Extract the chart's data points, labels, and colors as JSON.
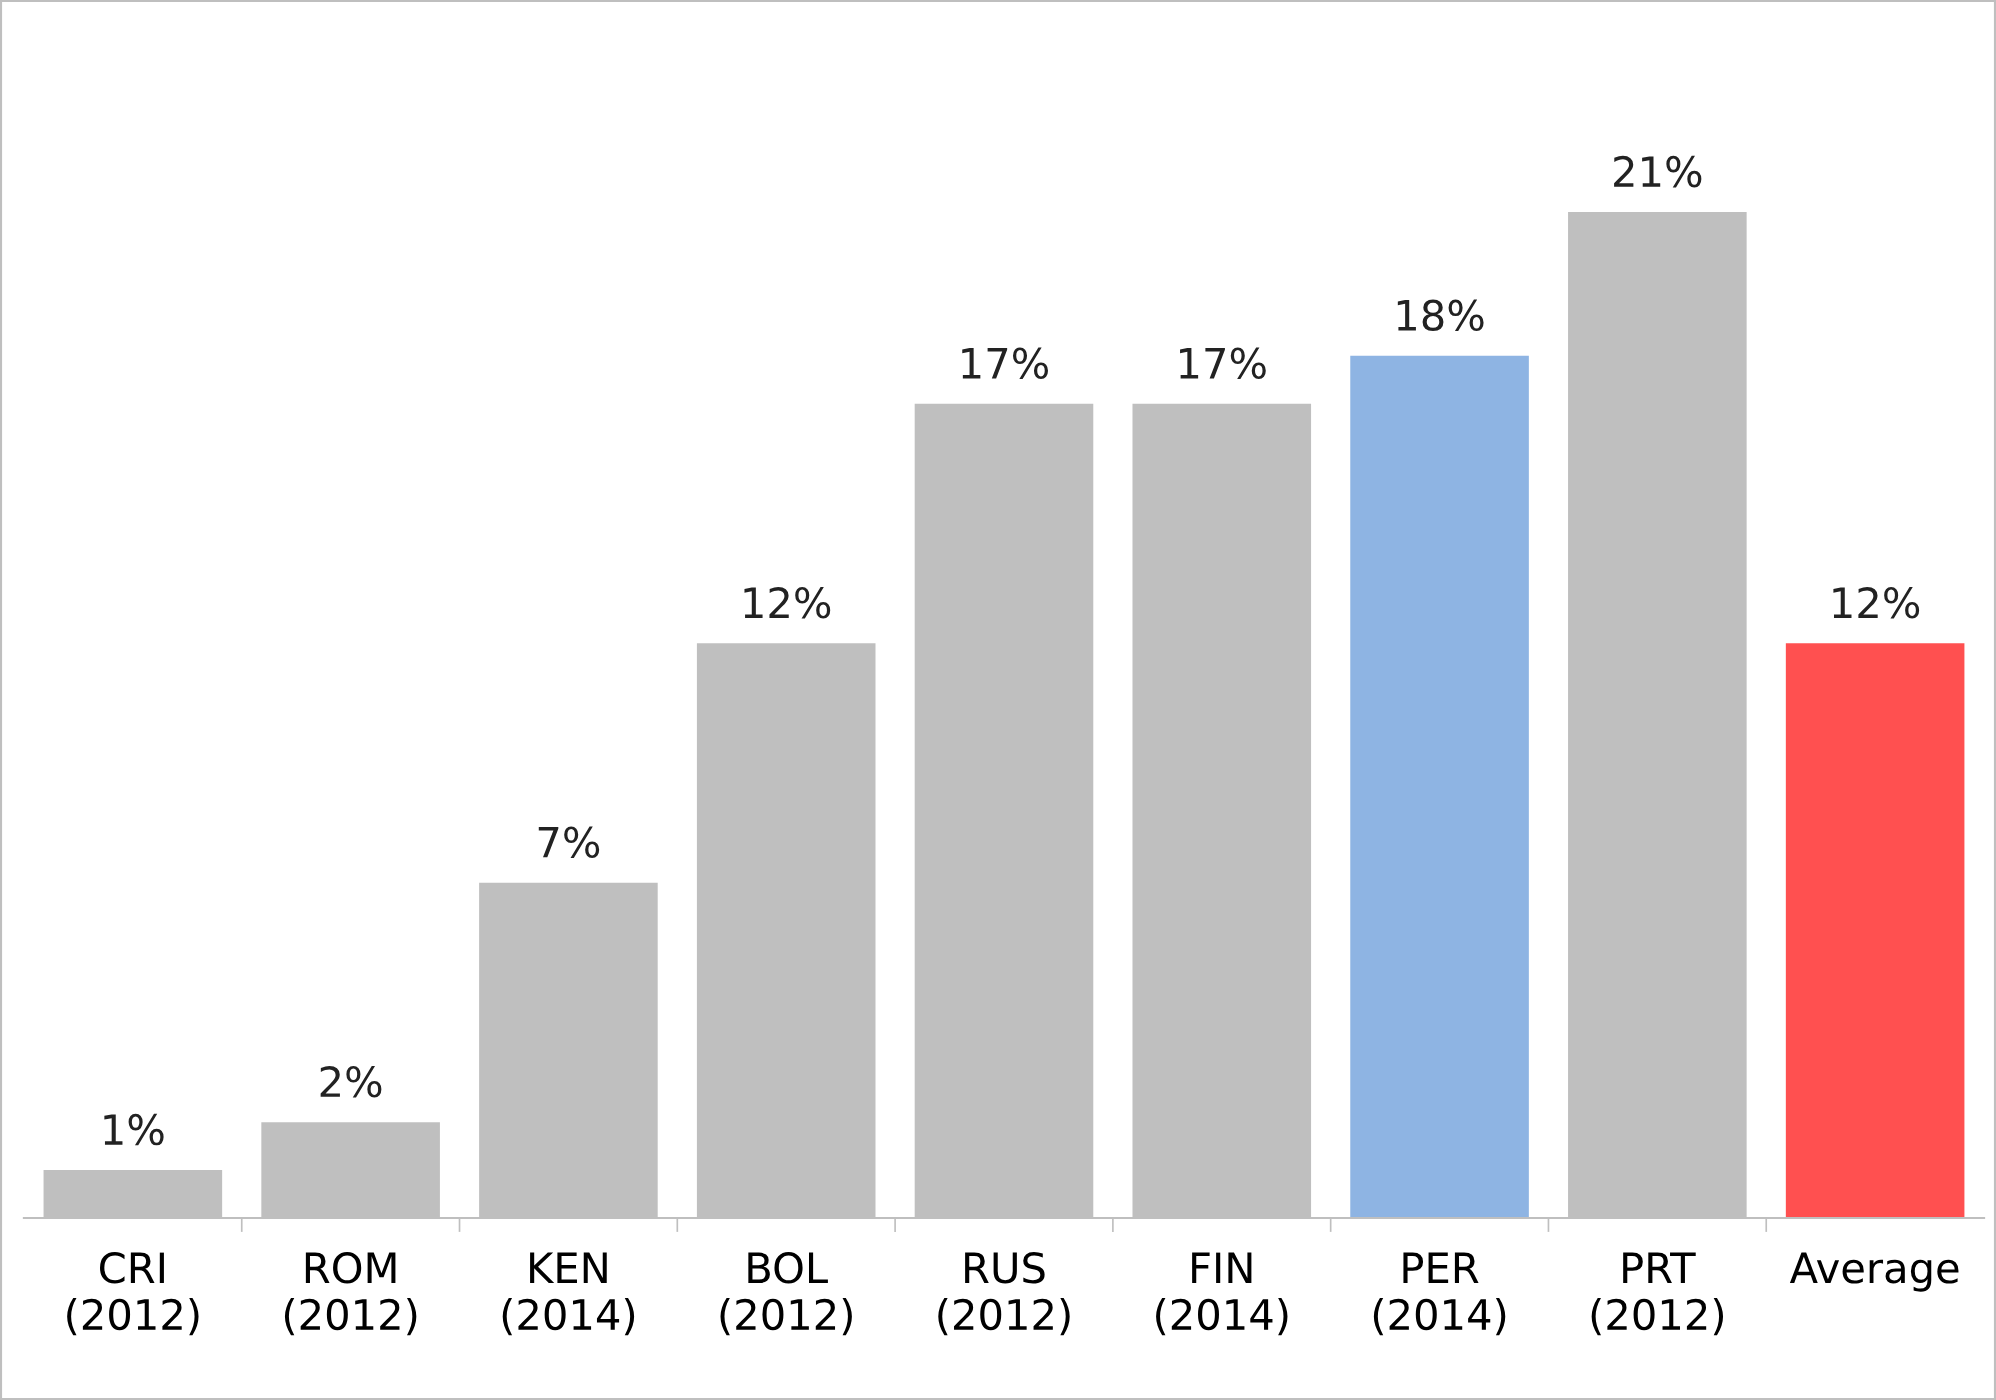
{
  "chart_data": {
    "type": "bar",
    "categories": [
      "CRI\n(2012)",
      "ROM\n(2012)",
      "KEN\n(2014)",
      "BOL\n(2012)",
      "RUS\n(2012)",
      "FIN\n(2014)",
      "PER\n(2014)",
      "PRT\n(2012)",
      "Average"
    ],
    "values": [
      1,
      2,
      7,
      12,
      17,
      17,
      18,
      21,
      12
    ],
    "colors": [
      "#bfbfbf",
      "#bfbfbf",
      "#bfbfbf",
      "#bfbfbf",
      "#bfbfbf",
      "#bfbfbf",
      "#8eb4e3",
      "#bfbfbf",
      "#ff5050"
    ],
    "value_labels": [
      "1%",
      "2%",
      "7%",
      "12%",
      "17%",
      "17%",
      "18%",
      "21%",
      "12%"
    ],
    "tick_labels": "x",
    "grid": false,
    "legend": false
  }
}
